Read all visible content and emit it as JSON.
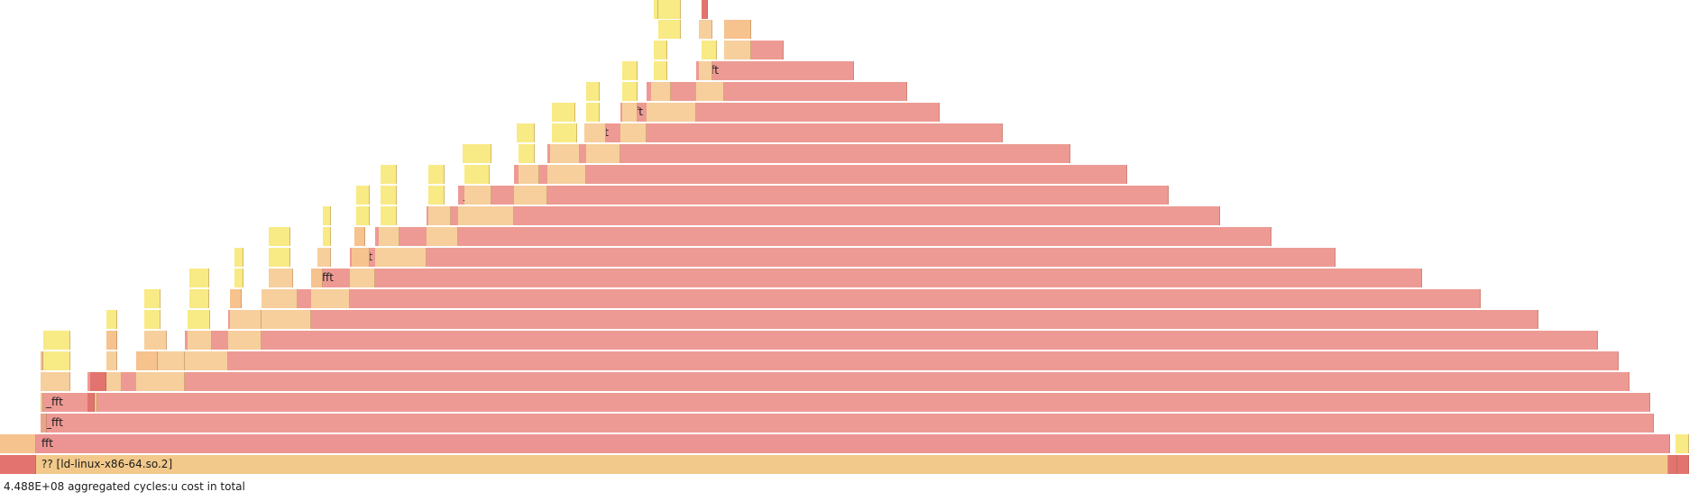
{
  "flamegraph": {
    "root_label": "?? [ld-linux-x86-64.so.2]",
    "fft_label": "_fft",
    "fft_root_label": "fft",
    "colors": {
      "root": "#f2c98a",
      "fft": "#ee9a94",
      "fft_root": "#ec9494",
      "orange": "#f6c28e",
      "yellow": "#f8ea84",
      "red": "#e2736e",
      "light": "#f6cf9c",
      "salmon": "#eba48c"
    }
  },
  "status_bar": {
    "text": "4.488E+08 aggregated cycles:u cost in total"
  }
}
